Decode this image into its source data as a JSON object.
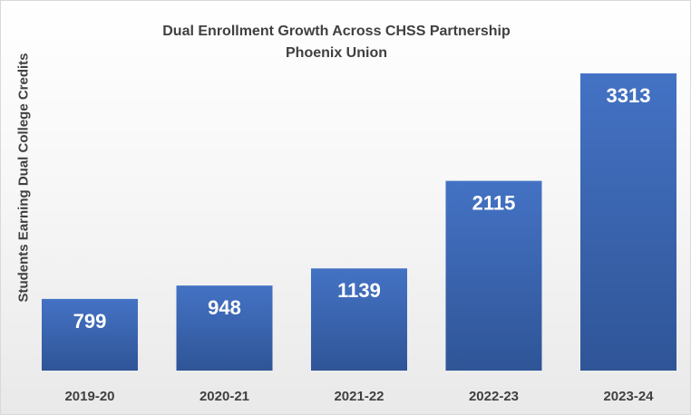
{
  "chart_data": {
    "type": "bar",
    "title": "Dual Enrollment Growth Across CHSS Partnership",
    "subtitle": "Phoenix Union",
    "xlabel": "",
    "ylabel": "Students Earning Dual College Credits",
    "categories": [
      "2019-20",
      "2020-21",
      "2021-22",
      "2022-23",
      "2023-24"
    ],
    "values": [
      799,
      948,
      1139,
      2115,
      3313
    ],
    "ylim": [
      0,
      3313
    ],
    "grid": false,
    "legend": "none",
    "bar_color_top": "#4472c4",
    "bar_color_bottom": "#2f5597",
    "data_label_color": "#ffffff"
  }
}
